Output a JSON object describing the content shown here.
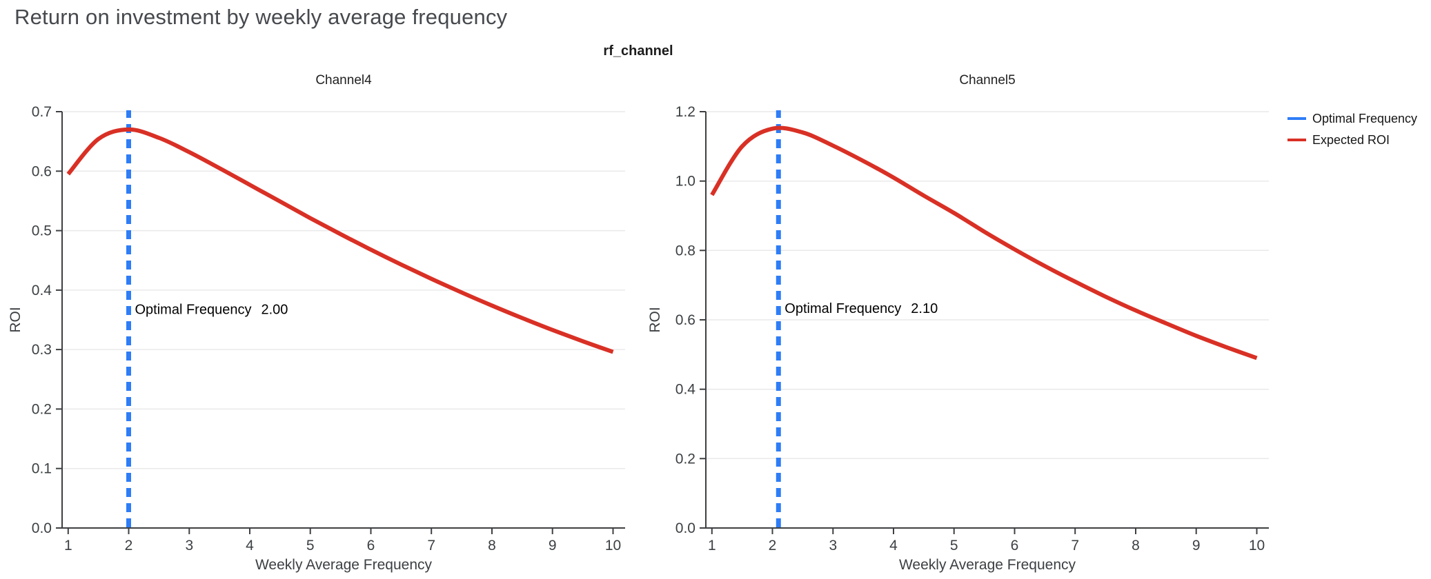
{
  "page": {
    "title": "Return on investment by weekly average frequency",
    "suptitle": "rf_channel"
  },
  "colors": {
    "background": "#ffffff",
    "title_text": "#46494d",
    "axis": "#3d3f42",
    "grid": "#e9e9e9",
    "tick_label": "#3c4043",
    "annotation_text": "#000000",
    "optimal_frequency_line": "#2e7df6",
    "expected_roi_line": "#d93025"
  },
  "legend": {
    "position": "top-right",
    "entries": [
      {
        "label": "Optimal Frequency",
        "color": "#2e7df6"
      },
      {
        "label": "Expected ROI",
        "color": "#d93025"
      }
    ]
  },
  "chart_data": [
    {
      "type": "line",
      "title": "Channel4",
      "xlabel": "Weekly Average Frequency",
      "ylabel": "ROI",
      "xlim": [
        0.9,
        10.2
      ],
      "ylim": [
        0,
        0.7
      ],
      "xticks": [
        1,
        2,
        3,
        4,
        5,
        6,
        7,
        8,
        9,
        10
      ],
      "ytick_step": 0.1,
      "ytick_decimals": 1,
      "grid": "horizontal",
      "optimal_frequency": {
        "label": "Optimal Frequency",
        "value": 2.0
      },
      "annotation": {
        "label": "Optimal Frequency",
        "value": "2.00",
        "x": 2.0,
        "y": 0.36
      },
      "series": [
        {
          "name": "Expected ROI",
          "x": [
            1,
            1.5,
            2,
            2.5,
            3,
            3.5,
            4,
            4.5,
            5,
            5.5,
            6,
            6.5,
            7,
            7.5,
            8,
            8.5,
            9,
            9.5,
            10
          ],
          "y": [
            0.595,
            0.654,
            0.67,
            0.656,
            0.632,
            0.605,
            0.577,
            0.549,
            0.521,
            0.494,
            0.468,
            0.443,
            0.419,
            0.396,
            0.374,
            0.353,
            0.333,
            0.314,
            0.296
          ]
        }
      ]
    },
    {
      "type": "line",
      "title": "Channel5",
      "xlabel": "Weekly Average Frequency",
      "ylabel": "ROI",
      "xlim": [
        0.9,
        10.2
      ],
      "ylim": [
        0,
        1.2
      ],
      "xticks": [
        1,
        2,
        3,
        4,
        5,
        6,
        7,
        8,
        9,
        10
      ],
      "ytick_step": 0.2,
      "ytick_decimals": 1,
      "grid": "horizontal",
      "optimal_frequency": {
        "label": "Optimal Frequency",
        "value": 2.1
      },
      "annotation": {
        "label": "Optimal Frequency",
        "value": "2.10",
        "x": 2.1,
        "y": 0.62
      },
      "series": [
        {
          "name": "Expected ROI",
          "x": [
            1,
            1.5,
            2,
            2.5,
            3,
            3.5,
            4,
            4.5,
            5,
            5.5,
            6,
            6.5,
            7,
            7.5,
            8,
            8.5,
            9,
            9.5,
            10
          ],
          "y": [
            0.96,
            1.1,
            1.151,
            1.14,
            1.102,
            1.058,
            1.01,
            0.958,
            0.908,
            0.854,
            0.803,
            0.755,
            0.71,
            0.667,
            0.627,
            0.59,
            0.554,
            0.521,
            0.49
          ]
        }
      ]
    }
  ]
}
